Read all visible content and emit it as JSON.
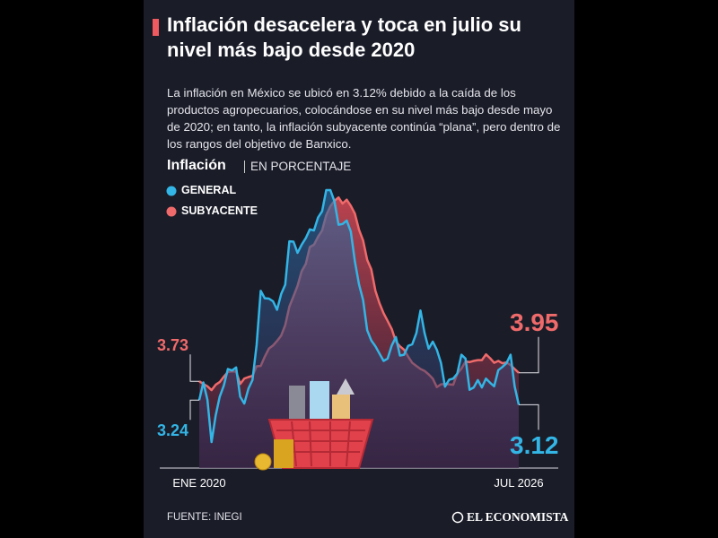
{
  "chart_data": {
    "type": "area",
    "title": "Inflación desacelera y toca en julio su nivel más bajo desde 2020",
    "subtitle": "La inflación en México se ubicó en 3.12% debido a la caída de los productos agropecuarios, colocándose en su nivel más bajo desde mayo de 2020; en tanto, la inflación subyacente continúa “plana”, pero dentro de los rangos del objetivo de Banxico.",
    "chart_label": "Inflación",
    "unit_label": "EN PORCENTAJE",
    "categories": [
      "ENE 2020",
      null,
      null,
      null,
      null,
      null,
      null,
      null,
      null,
      null,
      null,
      null,
      null,
      null,
      null,
      null,
      null,
      null,
      null,
      null,
      null,
      null,
      null,
      null,
      null,
      null,
      null,
      null,
      null,
      null,
      null,
      null,
      null,
      null,
      null,
      null,
      null,
      null,
      null,
      null,
      null,
      null,
      null,
      null,
      null,
      null,
      null,
      null,
      null,
      null,
      null,
      null,
      null,
      null,
      null,
      null,
      null,
      null,
      null,
      null,
      null,
      null,
      null,
      null,
      null,
      null,
      null,
      null,
      null,
      null,
      null,
      null,
      null,
      null,
      null,
      null,
      null,
      null,
      "JUL 2026"
    ],
    "series": [
      {
        "name": "GENERAL",
        "color": "#33b5e5",
        "values": [
          3.24,
          3.7,
          3.25,
          2.15,
          2.84,
          3.33,
          3.62,
          4.05,
          4.01,
          4.09,
          3.33,
          3.15,
          3.54,
          3.76,
          4.67,
          6.08,
          5.89,
          5.88,
          5.81,
          5.59,
          6.0,
          6.24,
          7.37,
          7.36,
          7.07,
          7.28,
          7.45,
          7.68,
          7.65,
          7.99,
          8.15,
          8.7,
          8.7,
          8.41,
          7.8,
          7.82,
          7.91,
          7.62,
          6.85,
          6.25,
          5.84,
          5.06,
          4.79,
          4.64,
          4.45,
          4.26,
          4.32,
          4.66,
          4.88,
          4.4,
          4.42,
          4.65,
          4.69,
          4.98,
          5.57,
          4.99,
          4.58,
          4.76,
          4.55,
          4.21,
          3.59,
          3.77,
          3.8,
          3.93,
          4.42,
          4.32,
          3.51,
          3.57,
          3.76,
          3.57,
          3.8,
          3.69,
          3.6,
          4.02,
          4.1,
          4.2,
          4.42,
          3.6,
          3.12
        ]
      },
      {
        "name": "SUBYACENTE",
        "color": "#ef6a6a",
        "values": [
          3.73,
          3.66,
          3.6,
          3.5,
          3.64,
          3.71,
          3.85,
          3.97,
          3.99,
          3.98,
          3.66,
          3.8,
          3.84,
          3.87,
          4.12,
          4.13,
          4.37,
          4.58,
          4.66,
          4.78,
          4.92,
          5.19,
          5.67,
          5.94,
          6.21,
          6.59,
          6.78,
          7.22,
          7.28,
          7.49,
          7.65,
          8.05,
          8.28,
          8.42,
          8.51,
          8.35,
          8.45,
          8.29,
          8.09,
          7.67,
          7.39,
          6.89,
          6.64,
          6.08,
          5.76,
          5.5,
          5.3,
          5.09,
          4.76,
          4.64,
          4.55,
          4.37,
          4.21,
          4.13,
          4.05,
          4.0,
          3.91,
          3.8,
          3.58,
          3.65,
          3.66,
          3.65,
          3.64,
          3.93,
          4.06,
          4.24,
          4.23,
          4.26,
          4.28,
          4.28,
          4.43,
          4.33,
          4.21,
          4.26,
          4.2,
          4.22,
          4.15,
          4.05,
          3.95
        ]
      }
    ],
    "source": "FUENTE: INEGI",
    "brand": "EL ECONOMISTA"
  }
}
